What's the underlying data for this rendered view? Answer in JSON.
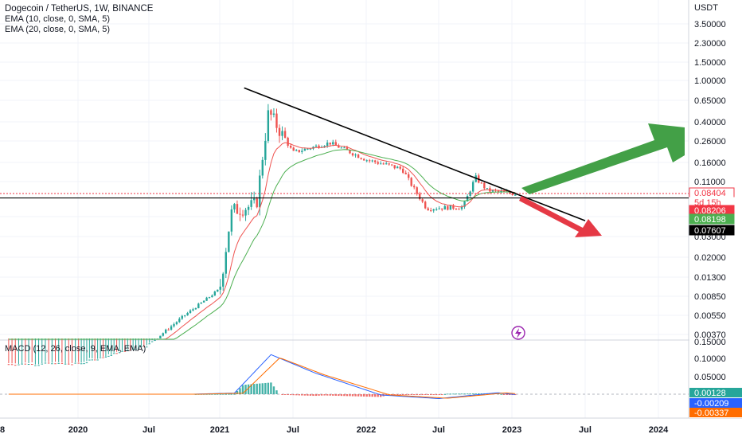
{
  "header": {
    "title": "Dogecoin / TetherUS, 1W, BINANCE",
    "ema1": "EMA (10, close, 0, SMA, 5)",
    "ema2": "EMA (20, close, 0, SMA, 5)",
    "macd": "MACD (12, 26, close, 9, EMA, EMA)"
  },
  "price_axis": {
    "currency": "USDT",
    "ticks": [
      "3.50000",
      "2.30000",
      "1.50000",
      "1.00000",
      "0.65000",
      "0.40000",
      "0.26000",
      "0.16000",
      "0.11000",
      "0.05000",
      "0.03000",
      "0.02000",
      "0.01300",
      "0.00850",
      "0.00550",
      "0.00370"
    ],
    "tags": [
      {
        "text": "0.08404",
        "bg": "#ffffff",
        "fg": "#f23645",
        "border": "#f23645"
      },
      {
        "text": "5d 15h",
        "bg": "#ffffff",
        "fg": "#f23645",
        "border": "#ffffff"
      },
      {
        "text": "0.08206",
        "bg": "#f23645",
        "fg": "#ffffff",
        "border": "#f23645"
      },
      {
        "text": "0.08198",
        "bg": "#4caf50",
        "fg": "#ffffff",
        "border": "#4caf50"
      },
      {
        "text": "0.07607",
        "bg": "#000000",
        "fg": "#ffffff",
        "border": "#000000"
      }
    ]
  },
  "macd_axis": {
    "ticks": [
      "0.15000",
      "0.10000",
      "0.05000"
    ],
    "tags": [
      {
        "text": "0.00128",
        "bg": "#26a69a",
        "fg": "#ffffff"
      },
      {
        "text": "-0.00209",
        "bg": "#2962ff",
        "fg": "#ffffff"
      },
      {
        "text": "-0.00337",
        "bg": "#ff6d00",
        "fg": "#ffffff"
      }
    ]
  },
  "time_axis": {
    "ticks": [
      "8",
      "2020",
      "Jul",
      "2021",
      "Jul",
      "2022",
      "Jul",
      "2023",
      "Jul",
      "2024"
    ]
  },
  "colors": {
    "up": "#26a69a",
    "down": "#ef5350",
    "ema10": "#ef5350",
    "ema20": "#4caf50",
    "macd_line": "#2962ff",
    "signal_line": "#ff6d00",
    "arrow_up": "#43a047",
    "arrow_down": "#e53945"
  },
  "chart_data": {
    "type": "line",
    "title": "Dogecoin / TetherUS, 1W, BINANCE",
    "y_scale": "log",
    "ylim": [
      0.003,
      5.0
    ],
    "x": [
      "2020-01",
      "2020-07",
      "2021-01",
      "2021-02",
      "2021-04",
      "2021-05",
      "2021-07",
      "2021-10",
      "2022-01",
      "2022-04",
      "2022-06",
      "2022-09",
      "2022-10",
      "2022-11",
      "2023-01"
    ],
    "series": [
      {
        "values": [
          0.002,
          0.003,
          0.01,
          0.057,
          0.065,
          0.5,
          0.2,
          0.25,
          0.17,
          0.14,
          0.06,
          0.062,
          0.12,
          0.09,
          0.084
        ]
      }
    ],
    "horizontal_levels": [
      0.08404,
      0.08206,
      0.08198,
      0.07607
    ],
    "annotations": {
      "trendline": [
        [
          "2021-03",
          0.85
        ],
        [
          "2023-07",
          0.045
        ]
      ],
      "arrows": [
        "up",
        "down"
      ]
    },
    "macd_panel": {
      "ylim": [
        -0.05,
        0.15
      ],
      "tags": [
        0.00128,
        -0.00209,
        -0.00337
      ]
    }
  }
}
